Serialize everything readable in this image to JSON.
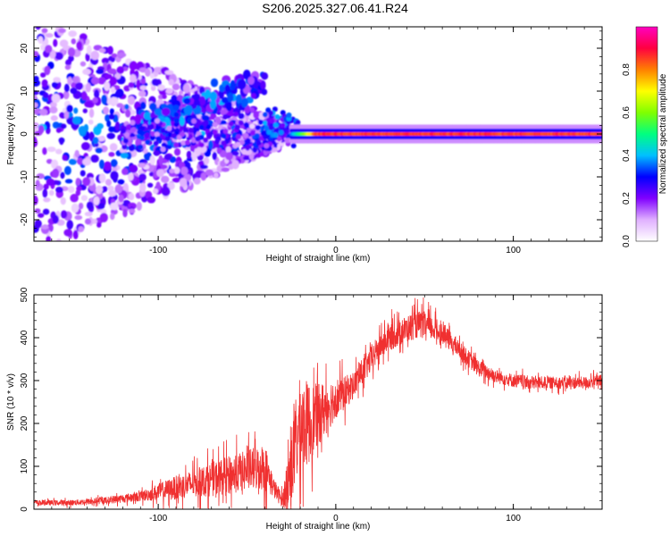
{
  "title": "S206.2025.327.06.41.R24",
  "chart_data": [
    {
      "type": "heatmap",
      "title": "S206.2025.327.06.41.R24",
      "xlabel": "Height of straight line (km)",
      "ylabel": "Frequency (Hz)",
      "xlim": [
        -170,
        150
      ],
      "ylim": [
        -25,
        25
      ],
      "xticks": [
        -100,
        0,
        100
      ],
      "yticks": [
        -20,
        -10,
        0,
        10,
        20
      ],
      "colorbar": {
        "label": "Normalized spectral amplitude",
        "range": [
          0,
          1
        ],
        "ticks": [
          0.0,
          0.2,
          0.4,
          0.6,
          0.8
        ],
        "colors": [
          "#ffffff",
          "#e0b0ff",
          "#8000ff",
          "#0000ff",
          "#00c0ff",
          "#00ff80",
          "#80ff00",
          "#ffff00",
          "#ff8000",
          "#ff0040",
          "#ff00c0"
        ]
      },
      "features": {
        "carrier_line": {
          "x_start": -25,
          "x_end": 150,
          "frequency": 0,
          "amplitude": 0.9
        },
        "spread_region": {
          "x_start": -170,
          "x_end": -30,
          "max_frequency_spread": 25,
          "amplitude": 0.3
        },
        "rising_branch": {
          "x_start": -120,
          "x_end": -40,
          "frequency_start": 0,
          "frequency_end": 12
        }
      }
    },
    {
      "type": "line",
      "xlabel": "Height of straight line (km)",
      "ylabel": "SNR (10 * v/v)",
      "xlim": [
        -170,
        150
      ],
      "ylim": [
        0,
        500
      ],
      "xticks": [
        -100,
        0,
        100
      ],
      "yticks": [
        0,
        100,
        200,
        300,
        400,
        500
      ],
      "color": "#f03030",
      "series": [
        {
          "name": "SNR",
          "x": [
            -170,
            -150,
            -130,
            -110,
            -100,
            -90,
            -80,
            -70,
            -60,
            -50,
            -40,
            -35,
            -30,
            -25,
            -20,
            -15,
            -10,
            -5,
            0,
            5,
            10,
            15,
            20,
            25,
            30,
            35,
            40,
            45,
            50,
            55,
            60,
            65,
            70,
            80,
            90,
            100,
            110,
            120,
            130,
            140,
            150
          ],
          "values": [
            15,
            15,
            20,
            30,
            40,
            50,
            60,
            70,
            80,
            90,
            100,
            50,
            20,
            100,
            200,
            200,
            220,
            240,
            260,
            270,
            290,
            320,
            350,
            380,
            400,
            410,
            420,
            430,
            430,
            420,
            410,
            390,
            370,
            330,
            310,
            300,
            295,
            295,
            295,
            295,
            300
          ],
          "noise": [
            8,
            8,
            10,
            15,
            25,
            35,
            40,
            50,
            55,
            60,
            70,
            30,
            20,
            120,
            140,
            120,
            90,
            80,
            60,
            50,
            40,
            40,
            40,
            40,
            40,
            40,
            40,
            40,
            40,
            35,
            30,
            30,
            25,
            25,
            20,
            20,
            20,
            18,
            18,
            18,
            18
          ]
        }
      ]
    }
  ]
}
